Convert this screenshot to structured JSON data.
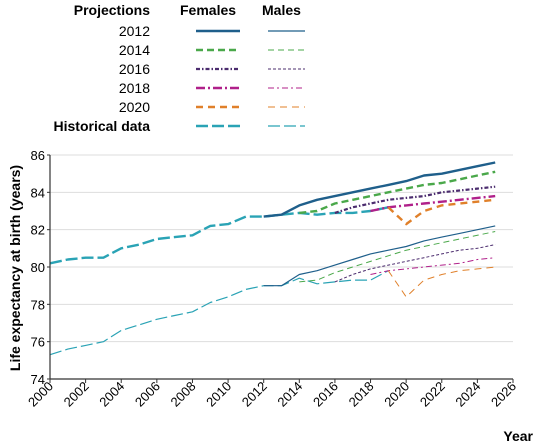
{
  "chart_data": {
    "type": "line",
    "title": "",
    "xlabel": "Year",
    "ylabel": "Life expectancy at birth (years)",
    "xlim": [
      2000,
      2026
    ],
    "ylim": [
      74,
      86
    ],
    "xticks": [
      2000,
      2002,
      2004,
      2006,
      2008,
      2010,
      2012,
      2014,
      2016,
      2018,
      2020,
      2022,
      2024,
      2026
    ],
    "yticks": [
      74,
      76,
      78,
      80,
      82,
      84,
      86
    ],
    "grid": "horizontal",
    "legend": {
      "position": "top",
      "headers": {
        "projections": "Projections",
        "females": "Females",
        "males": "Males"
      },
      "entries": [
        "2012",
        "2014",
        "2016",
        "2018",
        "2020",
        "Historical data"
      ]
    },
    "colors": {
      "2012": "#1f5f8b",
      "2014": "#4aa84a",
      "2016": "#4b2c6e",
      "2018": "#b0208a",
      "2020": "#e0802a",
      "historical": "#2aa3b5",
      "grid": "#dddddd",
      "axis": "#333333"
    },
    "series": [
      {
        "name": "Historical data",
        "sex": "Females",
        "x": [
          2000,
          2001,
          2002,
          2003,
          2004,
          2005,
          2006,
          2007,
          2008,
          2009,
          2010,
          2011,
          2012,
          2013,
          2014,
          2015,
          2016,
          2017,
          2018,
          2019
        ],
        "y": [
          80.2,
          80.4,
          80.5,
          80.5,
          81.0,
          81.2,
          81.5,
          81.6,
          81.7,
          82.2,
          82.3,
          82.7,
          82.7,
          82.8,
          82.9,
          82.8,
          82.9,
          82.9,
          83.0,
          83.2
        ]
      },
      {
        "name": "Historical data",
        "sex": "Males",
        "x": [
          2000,
          2001,
          2002,
          2003,
          2004,
          2005,
          2006,
          2007,
          2008,
          2009,
          2010,
          2011,
          2012,
          2013,
          2014,
          2015,
          2016,
          2017,
          2018,
          2019
        ],
        "y": [
          75.3,
          75.6,
          75.8,
          76.0,
          76.6,
          76.9,
          77.2,
          77.4,
          77.6,
          78.1,
          78.4,
          78.8,
          79.0,
          79.0,
          79.4,
          79.1,
          79.2,
          79.3,
          79.3,
          79.8
        ]
      },
      {
        "name": "2012",
        "sex": "Females",
        "x": [
          2012,
          2013,
          2014,
          2015,
          2016,
          2017,
          2018,
          2019,
          2020,
          2021,
          2022,
          2023,
          2024,
          2025
        ],
        "y": [
          82.7,
          82.8,
          83.3,
          83.6,
          83.8,
          84.0,
          84.2,
          84.4,
          84.6,
          84.9,
          85.0,
          85.2,
          85.4,
          85.6
        ]
      },
      {
        "name": "2012",
        "sex": "Males",
        "x": [
          2012,
          2013,
          2014,
          2015,
          2016,
          2017,
          2018,
          2019,
          2020,
          2021,
          2022,
          2023,
          2024,
          2025
        ],
        "y": [
          79.0,
          79.0,
          79.6,
          79.8,
          80.1,
          80.4,
          80.7,
          80.9,
          81.1,
          81.4,
          81.6,
          81.8,
          82.0,
          82.2
        ]
      },
      {
        "name": "2014",
        "sex": "Females",
        "x": [
          2014,
          2015,
          2016,
          2017,
          2018,
          2019,
          2020,
          2021,
          2022,
          2023,
          2024,
          2025
        ],
        "y": [
          82.9,
          83.0,
          83.4,
          83.6,
          83.8,
          84.0,
          84.2,
          84.4,
          84.5,
          84.7,
          84.9,
          85.1
        ]
      },
      {
        "name": "2014",
        "sex": "Males",
        "x": [
          2014,
          2015,
          2016,
          2017,
          2018,
          2019,
          2020,
          2021,
          2022,
          2023,
          2024,
          2025
        ],
        "y": [
          79.2,
          79.3,
          79.7,
          80.0,
          80.3,
          80.6,
          80.9,
          81.1,
          81.3,
          81.5,
          81.7,
          81.9
        ]
      },
      {
        "name": "2016",
        "sex": "Females",
        "x": [
          2016,
          2017,
          2018,
          2019,
          2020,
          2021,
          2022,
          2023,
          2024,
          2025
        ],
        "y": [
          82.9,
          83.2,
          83.4,
          83.6,
          83.7,
          83.8,
          84.0,
          84.1,
          84.2,
          84.3
        ]
      },
      {
        "name": "2016",
        "sex": "Males",
        "x": [
          2016,
          2017,
          2018,
          2019,
          2020,
          2021,
          2022,
          2023,
          2024,
          2025
        ],
        "y": [
          79.2,
          79.6,
          79.9,
          80.1,
          80.3,
          80.5,
          80.7,
          80.9,
          81.0,
          81.2
        ]
      },
      {
        "name": "2018",
        "sex": "Females",
        "x": [
          2018,
          2019,
          2020,
          2021,
          2022,
          2023,
          2024,
          2025
        ],
        "y": [
          83.0,
          83.2,
          83.3,
          83.4,
          83.5,
          83.6,
          83.7,
          83.8
        ]
      },
      {
        "name": "2018",
        "sex": "Males",
        "x": [
          2018,
          2019,
          2020,
          2021,
          2022,
          2023,
          2024,
          2025
        ],
        "y": [
          79.6,
          79.8,
          79.9,
          80.0,
          80.1,
          80.2,
          80.4,
          80.5
        ]
      },
      {
        "name": "2020",
        "sex": "Females",
        "x": [
          2019,
          2020,
          2021,
          2022,
          2023,
          2024,
          2025
        ],
        "y": [
          83.2,
          82.3,
          83.0,
          83.3,
          83.4,
          83.5,
          83.6
        ]
      },
      {
        "name": "2020",
        "sex": "Males",
        "x": [
          2019,
          2020,
          2021,
          2022,
          2023,
          2024,
          2025
        ],
        "y": [
          79.8,
          78.4,
          79.3,
          79.6,
          79.8,
          79.9,
          80.0
        ]
      }
    ]
  }
}
